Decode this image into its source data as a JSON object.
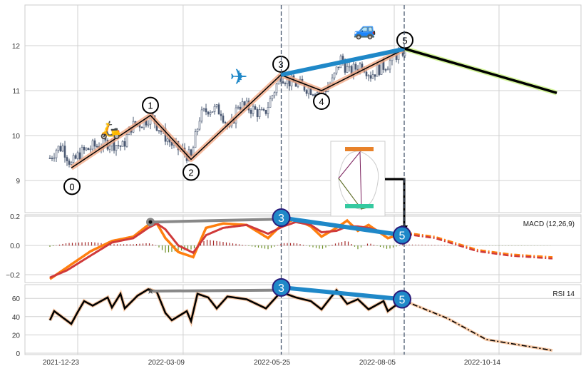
{
  "chart_data": {
    "type": "candlestick-with-indicators",
    "x_ticks": [
      {
        "i": 13,
        "label": "2021-12-23"
      },
      {
        "i": 62.3,
        "label": "2022-03-09"
      },
      {
        "i": 111.7,
        "label": "2022-05-25"
      },
      {
        "i": 161,
        "label": "2022-08-05"
      },
      {
        "i": 210,
        "label": "2022-10-14"
      }
    ],
    "price": {
      "yticks": [
        9,
        10,
        11,
        12
      ],
      "ylim": [
        8.25,
        12.9
      ],
      "close_keypoints": [
        [
          0,
          9.5
        ],
        [
          3,
          9.7
        ],
        [
          6,
          9.75
        ],
        [
          10,
          9.35
        ],
        [
          14,
          9.6
        ],
        [
          20,
          9.75
        ],
        [
          28,
          9.85
        ],
        [
          34,
          9.75
        ],
        [
          38,
          10.2
        ],
        [
          44,
          10.3
        ],
        [
          47,
          10.45
        ],
        [
          52,
          10.1
        ],
        [
          58,
          9.75
        ],
        [
          62,
          9.65
        ],
        [
          66,
          9.5
        ],
        [
          70,
          10.4
        ],
        [
          74,
          10.6
        ],
        [
          80,
          10.55
        ],
        [
          84,
          10.1
        ],
        [
          88,
          10.7
        ],
        [
          94,
          10.6
        ],
        [
          100,
          10.45
        ],
        [
          104,
          10.9
        ],
        [
          108,
          11.35
        ],
        [
          112,
          11.2
        ],
        [
          118,
          11.1
        ],
        [
          124,
          11.0
        ],
        [
          127,
          10.95
        ],
        [
          132,
          11.2
        ],
        [
          136,
          11.7
        ],
        [
          140,
          11.4
        ],
        [
          146,
          11.6
        ],
        [
          150,
          11.35
        ],
        [
          154,
          11.5
        ],
        [
          158,
          11.6
        ],
        [
          162,
          11.8
        ],
        [
          166,
          11.9
        ]
      ],
      "waves": [
        {
          "label": "0",
          "i": 10,
          "v": 9.28
        },
        {
          "label": "1",
          "i": 47,
          "v": 10.45
        },
        {
          "label": "2",
          "i": 66,
          "v": 9.47
        },
        {
          "label": "3",
          "i": 108,
          "v": 11.35
        },
        {
          "label": "4",
          "i": 127,
          "v": 11.0
        },
        {
          "label": "5",
          "i": 166,
          "v": 11.93
        }
      ],
      "projection": [
        [
          166,
          11.93
        ],
        [
          237,
          10.95
        ]
      ],
      "trend_line": [
        [
          108,
          11.35
        ],
        [
          166,
          11.93
        ]
      ],
      "icons": [
        "scooter-icon",
        "airplane-icon",
        "car-icon"
      ],
      "emoji": {
        "scooter": "🛵",
        "plane": "✈",
        "car": "🚙"
      }
    },
    "macd": {
      "title": "MACD (12,26,9)",
      "yticks": [
        -0.2,
        0.0,
        0.2
      ],
      "macd": [
        [
          0,
          -0.23
        ],
        [
          8,
          -0.15
        ],
        [
          19,
          -0.04
        ],
        [
          29,
          0.03
        ],
        [
          39,
          0.06
        ],
        [
          46,
          0.14
        ],
        [
          50,
          0.15
        ],
        [
          54,
          0.05
        ],
        [
          60,
          -0.045
        ],
        [
          67,
          -0.08
        ],
        [
          73,
          0.12
        ],
        [
          81,
          0.15
        ],
        [
          92,
          0.14
        ],
        [
          102,
          0.05
        ],
        [
          109,
          0.15
        ],
        [
          115,
          0.18
        ],
        [
          122,
          0.13
        ],
        [
          127,
          0.06
        ],
        [
          134,
          0.12
        ],
        [
          139,
          0.17
        ],
        [
          144,
          0.1
        ],
        [
          149,
          0.14
        ],
        [
          158,
          0.05
        ],
        [
          165,
          0.08
        ]
      ],
      "signal": [
        [
          0,
          -0.22
        ],
        [
          8,
          -0.17
        ],
        [
          19,
          -0.07
        ],
        [
          29,
          0.02
        ],
        [
          39,
          0.05
        ],
        [
          46,
          0.12
        ],
        [
          50,
          0.15
        ],
        [
          54,
          0.11
        ],
        [
          60,
          0.0
        ],
        [
          67,
          -0.05
        ],
        [
          73,
          0.07
        ],
        [
          81,
          0.12
        ],
        [
          92,
          0.14
        ],
        [
          102,
          0.08
        ],
        [
          109,
          0.13
        ],
        [
          115,
          0.16
        ],
        [
          122,
          0.14
        ],
        [
          127,
          0.09
        ],
        [
          134,
          0.1
        ],
        [
          139,
          0.13
        ],
        [
          144,
          0.13
        ],
        [
          149,
          0.12
        ],
        [
          158,
          0.08
        ],
        [
          165,
          0.07
        ]
      ],
      "projection": [
        [
          165,
          0.08
        ],
        [
          180,
          0.05
        ],
        [
          200,
          -0.04
        ],
        [
          215,
          -0.07
        ],
        [
          235,
          -0.09
        ]
      ],
      "divergence_gray": [
        [
          47,
          0.16
        ],
        [
          108,
          0.18
        ]
      ],
      "divergence_blue": [
        [
          108,
          0.19
        ],
        [
          165,
          0.07
        ]
      ],
      "markers": [
        "3",
        "5"
      ]
    },
    "rsi": {
      "title": "RSI 14",
      "yticks": [
        0,
        20,
        40,
        60
      ],
      "ylim": [
        0,
        75
      ],
      "values": [
        [
          0,
          36
        ],
        [
          2,
          46
        ],
        [
          10,
          32
        ],
        [
          13,
          45
        ],
        [
          16,
          57
        ],
        [
          20,
          52
        ],
        [
          27,
          61
        ],
        [
          29,
          50
        ],
        [
          33,
          65
        ],
        [
          35,
          49
        ],
        [
          41,
          63
        ],
        [
          46,
          70
        ],
        [
          50,
          67
        ],
        [
          54,
          44
        ],
        [
          57,
          36
        ],
        [
          64,
          46
        ],
        [
          66,
          35
        ],
        [
          69,
          65
        ],
        [
          74,
          61
        ],
        [
          78,
          49
        ],
        [
          83,
          62
        ],
        [
          92,
          59
        ],
        [
          101,
          49
        ],
        [
          108,
          67
        ],
        [
          115,
          61
        ],
        [
          122,
          57
        ],
        [
          127,
          48
        ],
        [
          134,
          69
        ],
        [
          139,
          54
        ],
        [
          144,
          59
        ],
        [
          149,
          48
        ],
        [
          156,
          57
        ],
        [
          158,
          46
        ],
        [
          165,
          58
        ]
      ],
      "projection": [
        [
          165,
          58
        ],
        [
          186,
          38
        ],
        [
          204,
          15
        ],
        [
          235,
          3
        ]
      ],
      "divergence_gray": [
        [
          47,
          68
        ],
        [
          108,
          69
        ]
      ],
      "divergence_blue": [
        [
          108,
          72
        ],
        [
          165,
          59
        ]
      ],
      "markers": [
        "3",
        "5"
      ]
    },
    "colors": {
      "candle": "#4a5872",
      "wave_glow": "#f1a47f",
      "blue": "#1f88c8",
      "proj_glow": "#d4f59a",
      "macd": "#ff7f0e",
      "signal": "#d03a3a",
      "hist_pos": "#a52a2a",
      "hist_neg": "#6b8e23"
    }
  }
}
